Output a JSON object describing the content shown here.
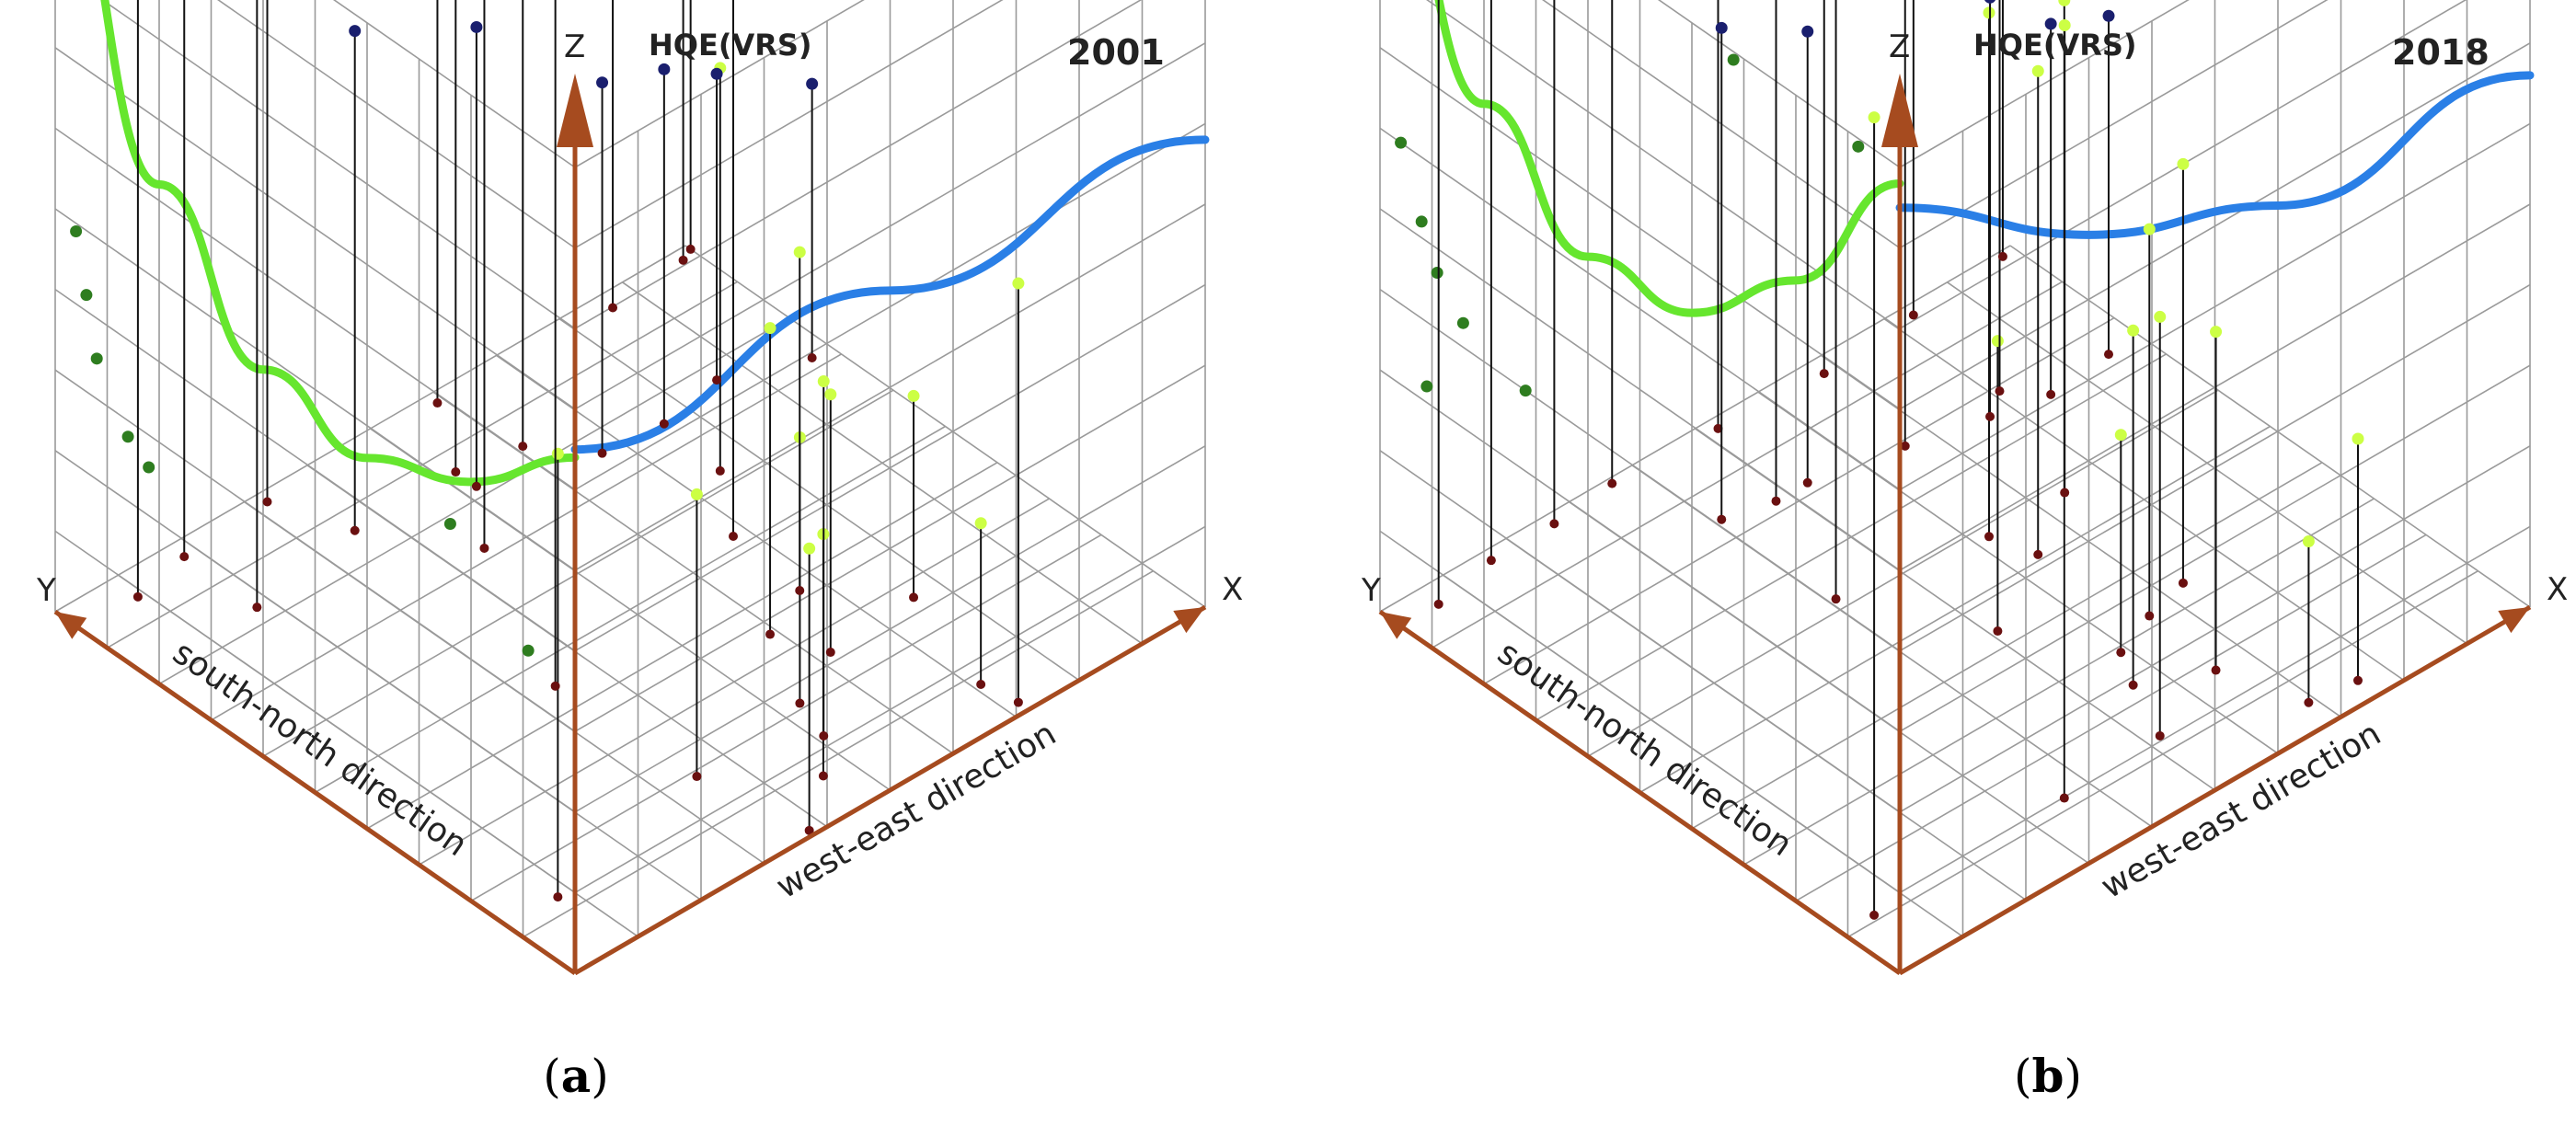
{
  "panels": [
    {
      "label": "a",
      "caption_open": "(",
      "caption_close": ")"
    },
    {
      "label": "b",
      "caption_open": "(",
      "caption_close": ")"
    }
  ],
  "colors": {
    "axis": "#a64b1f",
    "grid": "#9a9a9a",
    "green_trend": "#66e62e",
    "blue_trend": "#2a7fe6",
    "dark_green_point": "#2e7d1f",
    "lime_point": "#ccff44",
    "navy_point": "#1a1f6e",
    "base_point": "#6a1010",
    "stem": "#111111"
  },
  "chart_data": [
    {
      "type": "scatter",
      "title": "2001",
      "subtitle": "HQE(VRS)",
      "axis_labels": {
        "x": "X",
        "y": "Y",
        "z": "Z"
      },
      "xlabel": "west-east direction",
      "ylabel": "south-north direction",
      "zlabel": "HQE(VRS)",
      "xlim": [
        0,
        10
      ],
      "ylim": [
        0,
        10
      ],
      "zlim": [
        0,
        1
      ],
      "grid": true,
      "trend_lines": [
        {
          "plane": "west (Y–Z)",
          "color": "green",
          "points": [
            [
              0,
              0.64
            ],
            [
              2,
              0.52
            ],
            [
              4,
              0.46
            ],
            [
              6,
              0.48
            ],
            [
              8,
              0.62
            ],
            [
              10,
              0.95
            ]
          ]
        },
        {
          "plane": "north (X–Z)",
          "color": "blue",
          "points": [
            [
              0,
              0.65
            ],
            [
              5,
              0.62
            ],
            [
              10,
              0.58
            ]
          ]
        }
      ],
      "series": [
        {
          "color": "lime",
          "points": [
            [
              0.8,
              1.3,
              0.55
            ],
            [
              3.5,
              1.9,
              0.35
            ],
            [
              3.4,
              4.5,
              0.99
            ],
            [
              4.5,
              7.2,
              0.99
            ],
            [
              1.8,
              8.3,
              0.99
            ],
            [
              6.2,
              2.6,
              0.32
            ],
            [
              7.6,
              2.7,
              0.25
            ],
            [
              7.1,
              0.8,
              0.2
            ],
            [
              3.8,
              0.1,
              0.35
            ],
            [
              4.6,
              0.8,
              0.3
            ],
            [
              5.1,
              1.4,
              0.44
            ],
            [
              5.3,
              2.1,
              0.33
            ],
            [
              5.9,
              3.4,
              0.38
            ],
            [
              6.7,
              3.8,
              0.42
            ],
            [
              6.8,
              5.2,
              0.68
            ],
            [
              7.5,
              6.3,
              0.5
            ],
            [
              7.2,
              0.2,
              0.52
            ],
            [
              5.2,
              8.6,
              0.99
            ],
            [
              6.1,
              8.4,
              0.99
            ]
          ]
        },
        {
          "color": "darkgreen",
          "points": [
            [
              0,
              9.8,
              0.99
            ],
            [
              0,
              7.3,
              0.99
            ],
            [
              0,
              0.9,
              0.36
            ],
            [
              0,
              5.4,
              0.99
            ],
            [
              0,
              2.4,
              0.45
            ],
            [
              0,
              8.2,
              0.26
            ],
            [
              0,
              8.6,
              0.28
            ],
            [
              0,
              9.2,
              0.35
            ],
            [
              0,
              9.4,
              0.42
            ],
            [
              0,
              9.6,
              0.49
            ]
          ]
        },
        {
          "color": "navy",
          "points": [
            [
              0,
              8.8,
              0.99
            ],
            [
              0.9,
              9.5,
              0.99
            ],
            [
              1.8,
              9.7,
              0.99
            ],
            [
              3.2,
              9.8,
              0.99
            ],
            [
              5.9,
              9.8,
              0.99
            ],
            [
              8.6,
              9.7,
              0.99
            ],
            [
              9.8,
              9.8,
              0.99
            ],
            [
              10,
              9.9,
              0.99
            ],
            [
              3.6,
              8.6,
              0.62
            ],
            [
              5.2,
              8.2,
              0.57
            ],
            [
              6.7,
              7.6,
              0.46
            ],
            [
              7.6,
              7.5,
              0.44
            ],
            [
              8.6,
              7.7,
              0.38
            ],
            [
              9.7,
              7.2,
              0.34
            ]
          ]
        }
      ]
    },
    {
      "type": "scatter",
      "title": "2018",
      "subtitle": "HQE(VRS)",
      "axis_labels": {
        "x": "X",
        "y": "Y",
        "z": "Z"
      },
      "xlabel": "west-east direction",
      "ylabel": "south-north direction",
      "zlabel": "HQE(VRS)",
      "xlim": [
        0,
        10
      ],
      "ylim": [
        0,
        10
      ],
      "zlim": [
        0,
        1
      ],
      "grid": true,
      "trend_lines": [
        {
          "plane": "west (Y–Z)",
          "color": "green",
          "points": [
            [
              0,
              0.98
            ],
            [
              2,
              0.77
            ],
            [
              4,
              0.64
            ],
            [
              6,
              0.62
            ],
            [
              8,
              0.72
            ],
            [
              10,
              0.98
            ]
          ]
        },
        {
          "plane": "north (X–Z)",
          "color": "blue",
          "points": [
            [
              0,
              0.95
            ],
            [
              3,
              0.78
            ],
            [
              6,
              0.68
            ],
            [
              10,
              0.66
            ]
          ]
        }
      ],
      "series": [
        {
          "color": "lime",
          "points": [
            [
              0.5,
              1.1,
              0.99
            ],
            [
              3.6,
              1.2,
              0.99
            ],
            [
              4.1,
              6.2,
              0.99
            ],
            [
              4.8,
              8.2,
              0.99
            ],
            [
              5.9,
              2.9,
              0.27
            ],
            [
              6.6,
              3.2,
              0.48
            ],
            [
              6.4,
              5.1,
              0.6
            ],
            [
              7.4,
              5.8,
              0.58
            ],
            [
              7.3,
              3.4,
              0.52
            ],
            [
              7.6,
              0.4,
              0.3
            ],
            [
              6.9,
              0.5,
              0.2
            ],
            [
              5.2,
              1.3,
              0.52
            ],
            [
              5.6,
              2.3,
              0.44
            ],
            [
              5.1,
              4.3,
              0.36
            ],
            [
              6.2,
              5.8,
              0.65
            ],
            [
              8.1,
              7.9,
              0.83
            ],
            [
              6.5,
              1.8,
              0.42
            ]
          ]
        },
        {
          "color": "darkgreen",
          "points": [
            [
              0,
              9.8,
              0.99
            ],
            [
              0,
              7.5,
              0.99
            ],
            [
              0,
              5.4,
              0.99
            ],
            [
              0,
              3.2,
              0.99
            ],
            [
              0,
              0.8,
              0.99
            ],
            [
              0,
              7.2,
              0.4
            ],
            [
              0,
              8.4,
              0.43
            ],
            [
              0,
              8.9,
              0.47
            ],
            [
              0,
              9.2,
              0.52
            ],
            [
              0,
              9.6,
              0.6
            ],
            [
              0,
              9.1,
              0.32
            ]
          ]
        },
        {
          "color": "navy",
          "points": [
            [
              0.6,
              9.6,
              0.99
            ],
            [
              1.6,
              9.8,
              0.99
            ],
            [
              2.6,
              9.8,
              0.99
            ],
            [
              3.6,
              9.9,
              0.99
            ],
            [
              5.2,
              9.8,
              0.99
            ],
            [
              6.8,
              9.7,
              0.99
            ],
            [
              8.3,
              9.8,
              0.99
            ],
            [
              9.8,
              9.9,
              0.99
            ],
            [
              4.1,
              8.4,
              0.61
            ],
            [
              5.3,
              8.2,
              0.56
            ],
            [
              6.6,
              7.9,
              0.59
            ],
            [
              7.7,
              7.6,
              0.52
            ],
            [
              8.5,
              7.4,
              0.46
            ],
            [
              9.5,
              7.5,
              0.42
            ]
          ]
        }
      ]
    }
  ]
}
